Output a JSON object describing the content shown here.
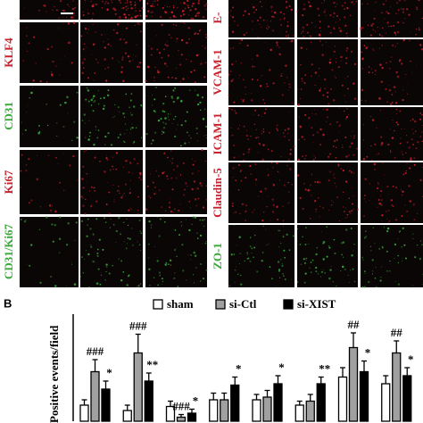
{
  "panel_labels": {
    "left": [
      "KLF4",
      "CD31",
      "Ki67",
      "CD31/Ki67"
    ],
    "right": [
      "E-",
      "VCAM-1",
      "ICAM-1",
      "Claudin-5",
      "ZO-1"
    ]
  },
  "chart_data": {
    "type": "bar",
    "panel": "B",
    "y_label": "Positive events/field",
    "categories": [
      null,
      null,
      null,
      null,
      null,
      null,
      null,
      null
    ],
    "ylim": [
      0,
      80
    ],
    "series": [
      {
        "name": "sham",
        "color": "#ffffff",
        "values": [
          12,
          8,
          11,
          16,
          16,
          12,
          33,
          28
        ],
        "errors": [
          4,
          4,
          4,
          5,
          4,
          3,
          7,
          6
        ],
        "annotations": [
          null,
          null,
          null,
          null,
          null,
          null,
          null,
          null
        ]
      },
      {
        "name": "si-Ctl",
        "color": "#a0a0a0",
        "values": [
          37,
          51,
          3,
          16,
          18,
          15,
          55,
          51
        ],
        "errors": [
          9,
          14,
          2,
          5,
          5,
          5,
          11,
          9
        ],
        "annotations": [
          "###",
          "###",
          "###",
          null,
          null,
          null,
          "##",
          "##"
        ]
      },
      {
        "name": "si-XIST",
        "color": "#000000",
        "values": [
          24,
          30,
          6,
          27,
          28,
          28,
          37,
          34
        ],
        "errors": [
          6,
          6,
          3,
          6,
          6,
          5,
          8,
          6
        ],
        "annotations": [
          "*",
          "**",
          "*",
          "*",
          "*",
          "**",
          "*",
          "*"
        ]
      }
    ]
  }
}
